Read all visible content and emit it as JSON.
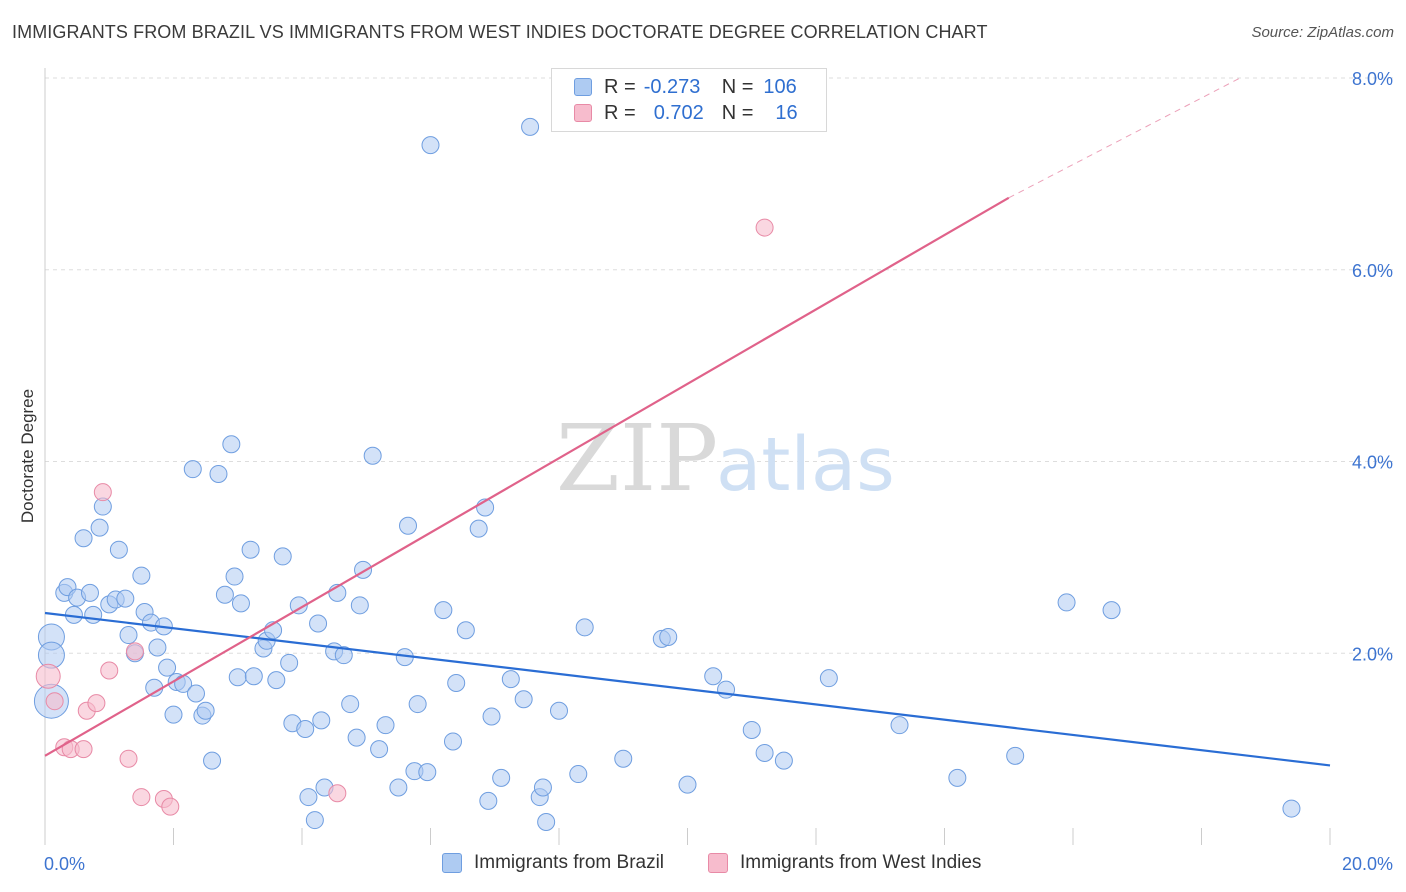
{
  "header": {
    "title": "IMMIGRANTS FROM BRAZIL VS IMMIGRANTS FROM WEST INDIES DOCTORATE DEGREE CORRELATION CHART",
    "source": "Source: ZipAtlas.com"
  },
  "watermark": {
    "zip": "ZIP",
    "atlas": "atlas"
  },
  "legend": {
    "brazil": {
      "r_label": "R =",
      "r_value": "-0.273",
      "n_label": "N =",
      "n_value": "106"
    },
    "west_indies": {
      "r_label": "R =",
      "r_value": "0.702",
      "n_label": "N =",
      "n_value": "16"
    }
  },
  "colors": {
    "brazil_fill": "#aecbf2",
    "brazil_stroke": "#6f9ee0",
    "brazil_line": "#2a6dd4",
    "west_indies_fill": "#f7bccd",
    "west_indies_stroke": "#e88aa6",
    "west_indies_line": "#e0628a",
    "tick_label": "#3d74d0",
    "grid": "#dddddd"
  },
  "chart_data": {
    "type": "scatter",
    "title": "IMMIGRANTS FROM BRAZIL VS IMMIGRANTS FROM WEST INDIES DOCTORATE DEGREE CORRELATION CHART",
    "xlabel": "",
    "ylabel": "Doctorate Degree",
    "xlim": [
      0,
      20
    ],
    "ylim": [
      0,
      8
    ],
    "x_tick_labels": [
      "0.0%",
      "20.0%"
    ],
    "y_ticks": [
      2,
      4,
      6,
      8
    ],
    "y_tick_labels": [
      "2.0%",
      "4.0%",
      "6.0%",
      "8.0%"
    ],
    "series": [
      {
        "name": "Immigrants from Brazil",
        "r": -0.273,
        "n": 106,
        "trend": {
          "x": [
            0,
            20
          ],
          "y": [
            2.42,
            0.83
          ]
        },
        "points": [
          [
            0.1,
            2.17
          ],
          [
            0.1,
            1.98
          ],
          [
            0.1,
            1.5
          ],
          [
            0.3,
            2.63
          ],
          [
            0.35,
            2.69
          ],
          [
            0.45,
            2.4
          ],
          [
            0.5,
            2.58
          ],
          [
            0.6,
            3.2
          ],
          [
            0.7,
            2.63
          ],
          [
            0.75,
            2.4
          ],
          [
            0.85,
            3.31
          ],
          [
            0.9,
            3.53
          ],
          [
            1.0,
            2.51
          ],
          [
            1.1,
            2.56
          ],
          [
            1.15,
            3.08
          ],
          [
            1.25,
            2.57
          ],
          [
            1.3,
            2.19
          ],
          [
            1.4,
            2.0
          ],
          [
            1.5,
            2.81
          ],
          [
            1.55,
            2.43
          ],
          [
            1.65,
            2.32
          ],
          [
            1.7,
            1.64
          ],
          [
            1.75,
            2.06
          ],
          [
            1.85,
            2.28
          ],
          [
            1.9,
            1.85
          ],
          [
            2.0,
            1.36
          ],
          [
            2.05,
            1.7
          ],
          [
            2.15,
            1.68
          ],
          [
            2.3,
            3.92
          ],
          [
            2.35,
            1.58
          ],
          [
            2.45,
            1.35
          ],
          [
            2.5,
            1.4
          ],
          [
            2.6,
            0.88
          ],
          [
            2.7,
            3.87
          ],
          [
            2.8,
            2.61
          ],
          [
            2.9,
            4.18
          ],
          [
            2.95,
            2.8
          ],
          [
            3.0,
            1.75
          ],
          [
            3.05,
            2.52
          ],
          [
            3.2,
            3.08
          ],
          [
            3.25,
            1.76
          ],
          [
            3.4,
            2.05
          ],
          [
            3.45,
            2.13
          ],
          [
            3.55,
            2.24
          ],
          [
            3.6,
            1.72
          ],
          [
            3.7,
            3.01
          ],
          [
            3.8,
            1.9
          ],
          [
            3.85,
            1.27
          ],
          [
            3.95,
            2.5
          ],
          [
            4.05,
            1.21
          ],
          [
            4.1,
            0.5
          ],
          [
            4.2,
            0.26
          ],
          [
            4.25,
            2.31
          ],
          [
            4.3,
            1.3
          ],
          [
            4.35,
            0.6
          ],
          [
            4.5,
            2.02
          ],
          [
            4.55,
            2.63
          ],
          [
            4.65,
            1.98
          ],
          [
            4.75,
            1.47
          ],
          [
            4.85,
            1.12
          ],
          [
            4.9,
            2.5
          ],
          [
            4.95,
            2.87
          ],
          [
            5.1,
            4.06
          ],
          [
            5.2,
            1.0
          ],
          [
            5.3,
            1.25
          ],
          [
            5.5,
            0.6
          ],
          [
            5.6,
            1.96
          ],
          [
            5.65,
            3.33
          ],
          [
            5.75,
            0.77
          ],
          [
            5.8,
            1.47
          ],
          [
            5.95,
            0.76
          ],
          [
            6.0,
            7.3
          ],
          [
            6.2,
            2.45
          ],
          [
            6.35,
            1.08
          ],
          [
            6.4,
            1.69
          ],
          [
            6.55,
            2.24
          ],
          [
            6.75,
            3.3
          ],
          [
            6.85,
            3.52
          ],
          [
            6.9,
            0.46
          ],
          [
            6.95,
            1.34
          ],
          [
            7.1,
            0.7
          ],
          [
            7.25,
            1.73
          ],
          [
            7.45,
            1.52
          ],
          [
            7.55,
            7.49
          ],
          [
            7.7,
            0.5
          ],
          [
            7.75,
            0.6
          ],
          [
            7.8,
            0.24
          ],
          [
            8.0,
            1.4
          ],
          [
            8.3,
            0.74
          ],
          [
            8.4,
            2.27
          ],
          [
            9.0,
            0.9
          ],
          [
            9.6,
            2.15
          ],
          [
            9.7,
            2.17
          ],
          [
            10.0,
            0.63
          ],
          [
            10.4,
            1.76
          ],
          [
            10.6,
            1.62
          ],
          [
            11.0,
            1.2
          ],
          [
            11.2,
            0.96
          ],
          [
            11.5,
            0.88
          ],
          [
            12.2,
            1.74
          ],
          [
            13.3,
            1.25
          ],
          [
            14.2,
            0.7
          ],
          [
            15.1,
            0.93
          ],
          [
            15.9,
            2.53
          ],
          [
            16.6,
            2.45
          ],
          [
            19.4,
            0.38
          ]
        ]
      },
      {
        "name": "Immigrants from West Indies",
        "r": 0.702,
        "n": 16,
        "trend": {
          "x": [
            0,
            15
          ],
          "y": [
            0.93,
            6.75
          ]
        },
        "trend_dashed": {
          "x": [
            15,
            18.6
          ],
          "y": [
            6.75,
            8.0
          ]
        },
        "points": [
          [
            0.05,
            1.76
          ],
          [
            0.15,
            1.5
          ],
          [
            0.3,
            1.02
          ],
          [
            0.4,
            1.0
          ],
          [
            0.6,
            1.0
          ],
          [
            0.65,
            1.4
          ],
          [
            0.8,
            1.48
          ],
          [
            0.9,
            3.68
          ],
          [
            1.0,
            1.82
          ],
          [
            1.3,
            0.9
          ],
          [
            1.5,
            0.5
          ],
          [
            1.85,
            0.48
          ],
          [
            1.95,
            0.4
          ],
          [
            1.4,
            2.02
          ],
          [
            4.55,
            0.54
          ],
          [
            11.2,
            6.44
          ]
        ]
      }
    ],
    "legend_labels": [
      "Immigrants from Brazil",
      "Immigrants from West Indies"
    ]
  }
}
